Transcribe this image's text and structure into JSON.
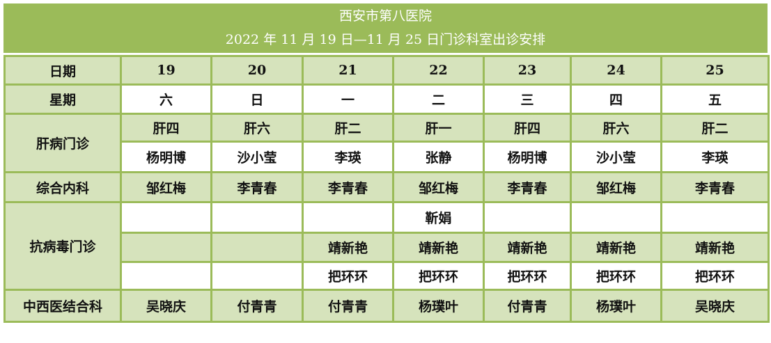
{
  "title": {
    "line1": "西安市第八医院",
    "line2": "2022 年 11 月 19 日—11 月 25 日门诊科室出诊安排"
  },
  "colors": {
    "header": "#9bbb59",
    "band": "#d6e3bc",
    "border": "#9bbb59"
  },
  "date_row": {
    "label": "日期",
    "values": [
      "19",
      "20",
      "21",
      "22",
      "23",
      "24",
      "25"
    ]
  },
  "weekday_row": {
    "label": "星期",
    "values": [
      "六",
      "日",
      "一",
      "二",
      "三",
      "四",
      "五"
    ]
  },
  "liver": {
    "label": "肝病门诊",
    "rooms": [
      "肝四",
      "肝六",
      "肝二",
      "肝一",
      "肝四",
      "肝六",
      "肝二"
    ],
    "doctors": [
      "杨明博",
      "沙小莹",
      "李瑛",
      "张静",
      "杨明博",
      "沙小莹",
      "李瑛"
    ]
  },
  "internal": {
    "label": "综合内科",
    "doctors": [
      "邹红梅",
      "李青春",
      "李青春",
      "邹红梅",
      "李青春",
      "邹红梅",
      "李青春"
    ]
  },
  "antiviral": {
    "label": "抗病毒门诊",
    "rows": [
      [
        "",
        "",
        "",
        "靳娟",
        "",
        "",
        ""
      ],
      [
        "",
        "",
        "靖新艳",
        "靖新艳",
        "靖新艳",
        "靖新艳",
        "靖新艳"
      ],
      [
        "",
        "",
        "把环环",
        "把环环",
        "把环环",
        "把环环",
        "把环环"
      ]
    ]
  },
  "integrated": {
    "label": "中西医结合科",
    "doctors": [
      "吴晓庆",
      "付青青",
      "付青青",
      "杨璞叶",
      "付青青",
      "杨璞叶",
      "吴晓庆"
    ]
  }
}
